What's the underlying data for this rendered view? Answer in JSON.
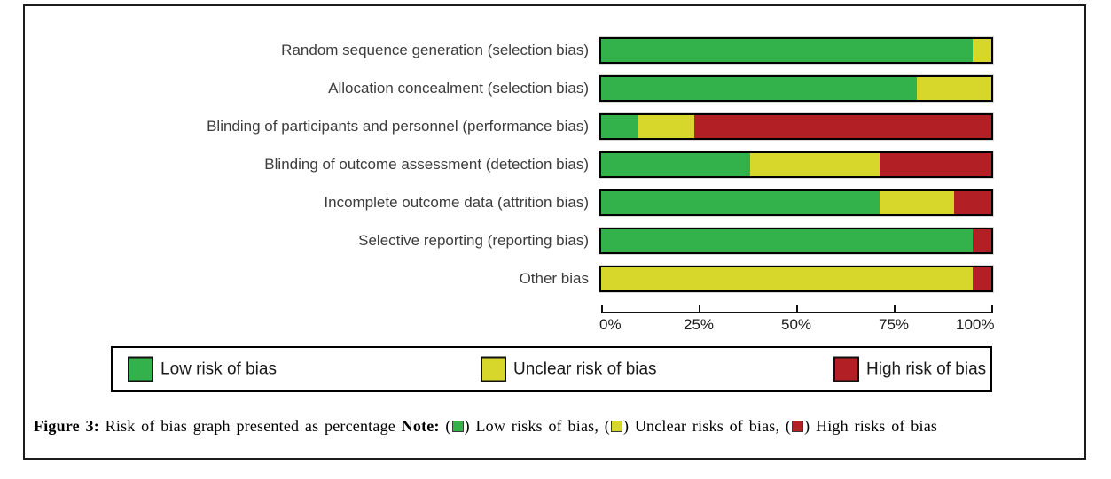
{
  "figure": {
    "caption": {
      "figure_label": "Figure 3:",
      "title": "Risk of bias graph presented as percentage",
      "note_label": "Note:",
      "note_items": [
        {
          "text": "Low risks of bias",
          "separator": ", "
        },
        {
          "text": "Unclear risks of bias",
          "separator": ", "
        },
        {
          "text": "High risks of bias",
          "separator": ""
        }
      ]
    }
  },
  "legend": {
    "items": [
      {
        "label": "Low risk of bias",
        "color": "#33B14A"
      },
      {
        "label": "Unclear risk of bias",
        "color": "#D6D62B"
      },
      {
        "label": "High risk of bias",
        "color": "#B22025"
      }
    ]
  },
  "colors": {
    "low_risk": "#33B14A",
    "unclear_risk": "#D6D62B",
    "high_risk": "#B22025",
    "bar_border": "#000000",
    "frame_border": "#1c1c1c",
    "label_text": "#3c3c3c"
  },
  "chart_data": {
    "type": "bar",
    "variant": "horizontal-stacked-percentage",
    "title": "",
    "xlabel": "",
    "ylabel": "",
    "categories": [
      "Random sequence generation (selection bias)",
      "Allocation concealment (selection bias)",
      "Blinding of participants and personnel (performance bias)",
      "Blinding of outcome assessment (detection bias)",
      "Incomplete outcome data (attrition bias)",
      "Selective reporting (reporting bias)",
      "Other bias"
    ],
    "series": [
      {
        "name": "Low risk of bias",
        "color": "#33B14A",
        "values": [
          95.2,
          81.0,
          9.5,
          38.1,
          71.4,
          95.2,
          0
        ]
      },
      {
        "name": "Unclear risk of bias",
        "color": "#D6D62B",
        "values": [
          4.8,
          19.0,
          14.3,
          33.3,
          19.0,
          0,
          95.2
        ]
      },
      {
        "name": "High risk of bias",
        "color": "#B22025",
        "values": [
          0,
          0,
          76.2,
          28.6,
          9.5,
          4.8,
          4.8
        ]
      }
    ],
    "x_ticks": [
      {
        "value": 0,
        "label": "0%"
      },
      {
        "value": 25,
        "label": "25%"
      },
      {
        "value": 50,
        "label": "50%"
      },
      {
        "value": 75,
        "label": "75%"
      },
      {
        "value": 100,
        "label": "100%"
      }
    ],
    "xlim": [
      0,
      100
    ],
    "grid": false,
    "legend_position": "bottom"
  }
}
